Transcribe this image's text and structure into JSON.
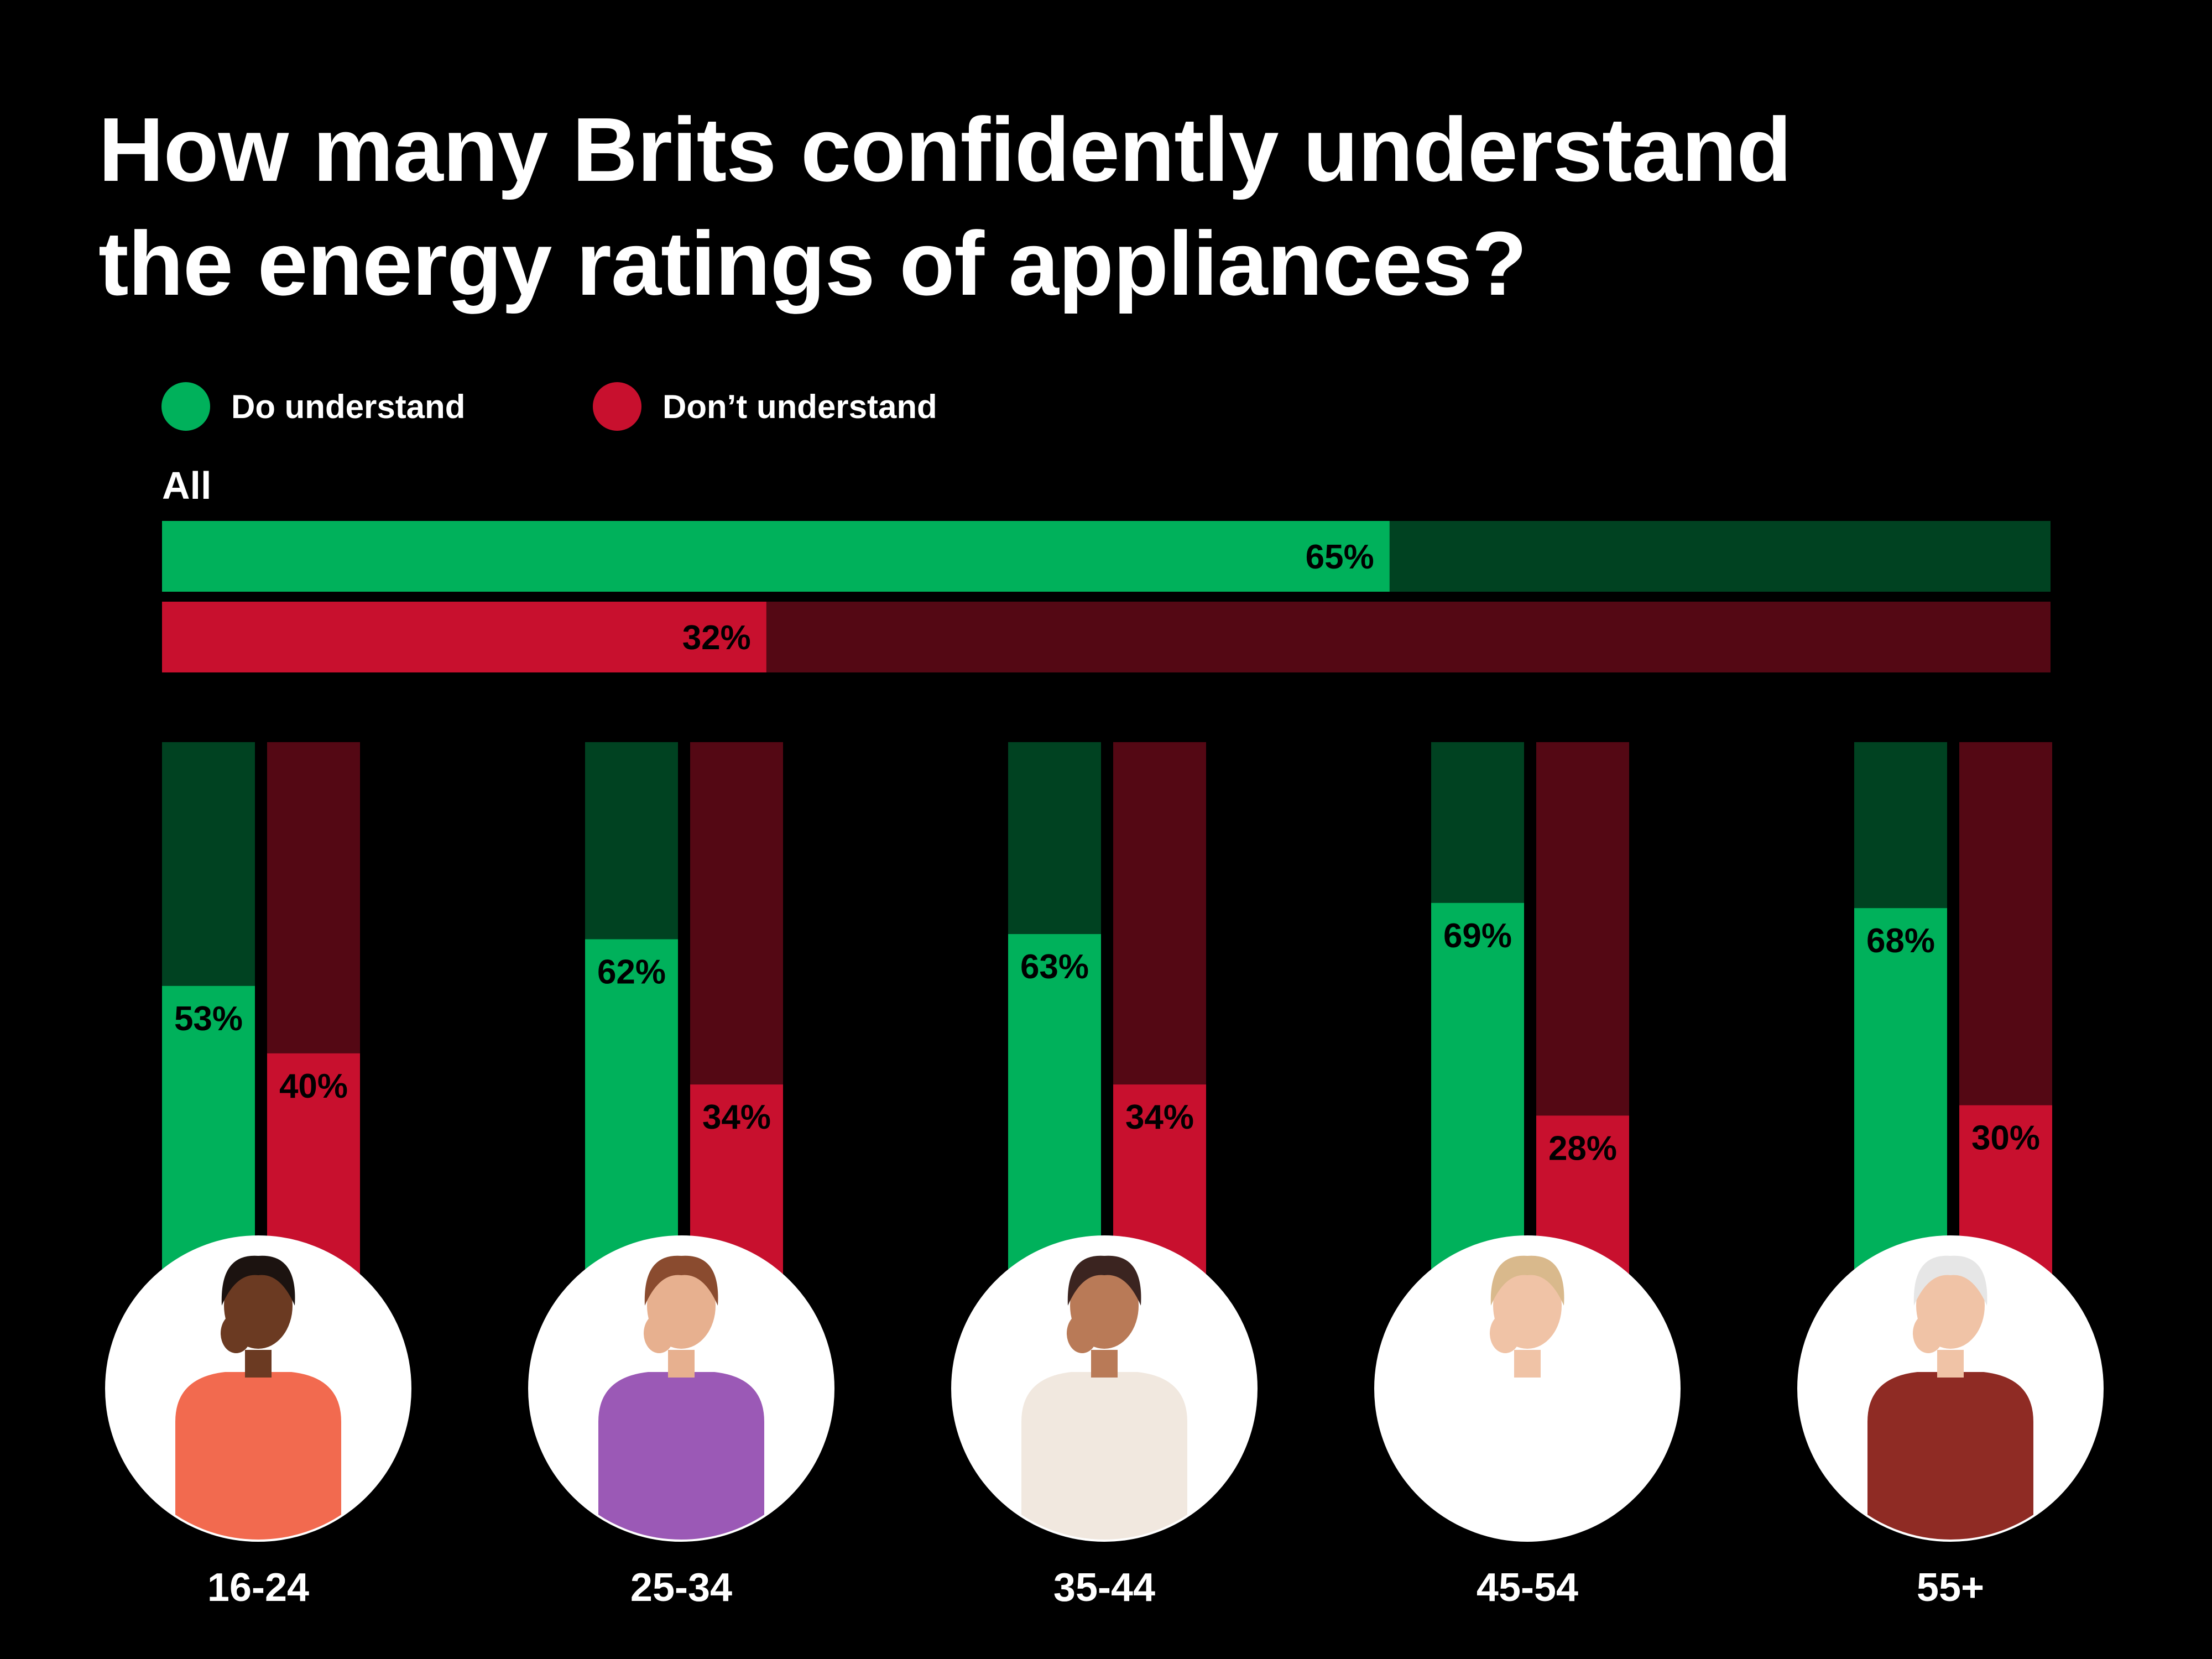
{
  "title_lines": [
    "How many Brits confidently understand",
    "the energy ratings of appliances?"
  ],
  "legend": [
    {
      "label": "Do understand",
      "color": "#00b15b"
    },
    {
      "label": "Don’t understand",
      "color": "#c8102e"
    }
  ],
  "colors": {
    "understand": "#00b15b",
    "understand_track": "#004221",
    "dont_understand": "#c8102e",
    "dont_understand_track": "#540814",
    "value_text": "#000000",
    "background": "#000000"
  },
  "all_label": "All",
  "chart_data": [
    {
      "type": "bar",
      "orientation": "horizontal",
      "title": "All",
      "series": [
        {
          "name": "Do understand",
          "values": [
            65
          ]
        },
        {
          "name": "Don’t understand",
          "values": [
            32
          ]
        }
      ],
      "value_labels": [
        "65%",
        "32%"
      ],
      "xlim": [
        0,
        100
      ]
    },
    {
      "type": "bar",
      "orientation": "vertical",
      "categories": [
        "16-24",
        "25-34",
        "35-44",
        "45-54",
        "55+"
      ],
      "series": [
        {
          "name": "Do understand",
          "values": [
            53,
            62,
            63,
            69,
            68
          ],
          "labels": [
            "53%",
            "62%",
            "63%",
            "69%",
            "68%"
          ]
        },
        {
          "name": "Don’t understand",
          "values": [
            40,
            34,
            34,
            28,
            30
          ],
          "labels": [
            "40%",
            "34%",
            "34%",
            "28%",
            "30%"
          ]
        }
      ],
      "ylim": [
        0,
        100
      ]
    }
  ],
  "avatars": [
    {
      "category": "16-24",
      "icon": "young-man-thinking-icon",
      "shirt": "#f26a4f",
      "skin": "#6b3a22",
      "hair": "#1c1310"
    },
    {
      "category": "25-34",
      "icon": "man-headache-icon",
      "shirt": "#9b59b6",
      "skin": "#e7b08f",
      "hair": "#8a4b2f"
    },
    {
      "category": "35-44",
      "icon": "woman-worried-icon",
      "shirt": "#f1e8df",
      "skin": "#b97a57",
      "hair": "#3b2420"
    },
    {
      "category": "45-54",
      "icon": "woman-glasses-icon",
      "shirt": "#ffffff",
      "skin": "#f0c3a6",
      "hair": "#d9b98c"
    },
    {
      "category": "55+",
      "icon": "older-man-glasses-icon",
      "shirt": "#8f2b24",
      "skin": "#f0c3a6",
      "hair": "#e6e6e6"
    }
  ]
}
